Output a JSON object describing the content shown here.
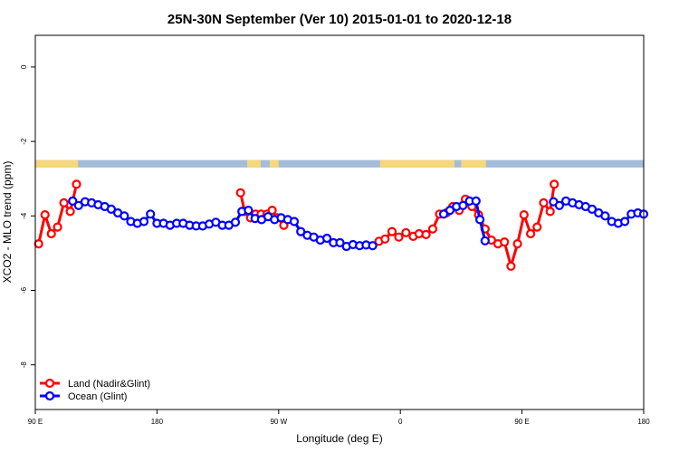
{
  "chart_data": {
    "type": "line",
    "title": "25N-30N September (Ver 10)   2015-01-01 to 2020-12-18",
    "xlabel": "Longitude (deg E)",
    "ylabel": "XCO2 - MLO trend (ppm)",
    "xlim": [
      90,
      360
    ],
    "ylim": [
      -9.2,
      0.85
    ],
    "x_ticks": [
      {
        "value": 90,
        "label": "90 E"
      },
      {
        "value": 144,
        "label": "180"
      },
      {
        "value": 198,
        "label": "90 W"
      },
      {
        "value": 252,
        "label": "0"
      },
      {
        "value": 306,
        "label": "90 E"
      },
      {
        "value": 360,
        "label": "180"
      }
    ],
    "y_ticks": [
      {
        "value": 0,
        "label": "0"
      },
      {
        "value": -2,
        "label": "-2"
      },
      {
        "value": -4,
        "label": "-4"
      },
      {
        "value": -6,
        "label": "-6"
      },
      {
        "value": -8,
        "label": "-8"
      }
    ],
    "grid": false,
    "legend": "bottom-left",
    "surface_band": {
      "y_range": [
        -2.5,
        -2.7
      ],
      "ocean_color": "#a3bcd9",
      "land_color": "#f6d77a",
      "land_segments": [
        [
          90,
          109
        ],
        [
          184,
          190
        ],
        [
          194,
          198
        ],
        [
          243,
          276
        ],
        [
          279,
          290
        ]
      ]
    },
    "series": [
      {
        "name": "Land (Nadir&Glint)",
        "color": "#ff0000",
        "segments": [
          [
            [
              91.5,
              -4.75
            ],
            [
              94.3,
              -3.97
            ],
            [
              97.1,
              -4.48
            ],
            [
              99.9,
              -4.3
            ],
            [
              102.7,
              -3.65
            ],
            [
              105.5,
              -3.88
            ],
            [
              108.3,
              -3.15
            ]
          ],
          [
            [
              181.1,
              -3.38
            ],
            [
              182.9,
              -3.88
            ],
            [
              185.5,
              -4.05
            ],
            [
              187.8,
              -3.95
            ],
            [
              190.2,
              -3.95
            ],
            [
              192.8,
              -3.95
            ],
            [
              195.1,
              -3.85
            ],
            [
              197.3,
              -4.05
            ],
            [
              200.3,
              -4.25
            ]
          ],
          [
            [
              242.5,
              -4.68
            ],
            [
              245.2,
              -4.62
            ],
            [
              248.3,
              -4.42
            ],
            [
              251.3,
              -4.57
            ],
            [
              254.5,
              -4.45
            ],
            [
              257.7,
              -4.55
            ],
            [
              260.3,
              -4.48
            ],
            [
              263.4,
              -4.5
            ],
            [
              266.4,
              -4.35
            ],
            [
              269.4,
              -3.95
            ],
            [
              272.4,
              -3.92
            ],
            [
              275.3,
              -3.75
            ],
            [
              278.1,
              -3.85
            ],
            [
              280.9,
              -3.55
            ],
            [
              283.8,
              -3.75
            ],
            [
              286.7,
              -3.97
            ],
            [
              289.6,
              -4.35
            ],
            [
              292.4,
              -4.65
            ],
            [
              295.3,
              -4.75
            ],
            [
              298.2,
              -4.7
            ],
            [
              301.1,
              -5.35
            ],
            [
              304.0,
              -4.75
            ],
            [
              306.9,
              -3.97
            ],
            [
              309.8,
              -4.48
            ],
            [
              312.7,
              -4.3
            ],
            [
              315.6,
              -3.65
            ],
            [
              318.5,
              -3.88
            ],
            [
              320.3,
              -3.15
            ]
          ]
        ]
      },
      {
        "name": "Ocean (Glint)",
        "color": "#0000ff",
        "segments": [
          [
            [
              106.6,
              -3.6
            ],
            [
              109.2,
              -3.72
            ],
            [
              112.1,
              -3.62
            ],
            [
              115.0,
              -3.65
            ],
            [
              117.9,
              -3.7
            ],
            [
              120.8,
              -3.75
            ],
            [
              123.7,
              -3.82
            ],
            [
              126.6,
              -3.92
            ],
            [
              129.5,
              -4.0
            ],
            [
              132.4,
              -4.15
            ],
            [
              135.3,
              -4.2
            ],
            [
              138.2,
              -4.15
            ],
            [
              141.1,
              -3.95
            ],
            [
              144.0,
              -4.2
            ],
            [
              146.9,
              -4.2
            ],
            [
              149.8,
              -4.25
            ],
            [
              152.7,
              -4.2
            ],
            [
              155.6,
              -4.2
            ],
            [
              158.5,
              -4.25
            ],
            [
              161.4,
              -4.27
            ],
            [
              164.3,
              -4.27
            ],
            [
              167.2,
              -4.22
            ],
            [
              170.1,
              -4.17
            ],
            [
              173.0,
              -4.25
            ],
            [
              175.9,
              -4.25
            ],
            [
              178.8,
              -4.17
            ],
            [
              181.7,
              -3.88
            ],
            [
              184.6,
              -3.85
            ],
            [
              187.5,
              -4.07
            ],
            [
              190.4,
              -4.1
            ],
            [
              193.3,
              -4.02
            ],
            [
              196.2,
              -4.1
            ],
            [
              199.1,
              -4.05
            ],
            [
              202.0,
              -4.1
            ],
            [
              204.9,
              -4.15
            ],
            [
              207.8,
              -4.42
            ],
            [
              210.7,
              -4.52
            ],
            [
              213.6,
              -4.57
            ],
            [
              216.5,
              -4.65
            ],
            [
              219.4,
              -4.6
            ],
            [
              222.3,
              -4.72
            ],
            [
              225.2,
              -4.72
            ],
            [
              228.1,
              -4.82
            ],
            [
              231.0,
              -4.77
            ],
            [
              233.9,
              -4.8
            ],
            [
              236.8,
              -4.78
            ],
            [
              239.7,
              -4.8
            ]
          ],
          [
            [
              271.2,
              -3.95
            ],
            [
              274.0,
              -3.85
            ],
            [
              276.9,
              -3.75
            ],
            [
              279.8,
              -3.72
            ],
            [
              282.7,
              -3.6
            ],
            [
              285.6,
              -3.6
            ],
            [
              287.3,
              -4.1
            ],
            [
              289.6,
              -4.67
            ]
          ],
          [
            [
              320.0,
              -3.62
            ],
            [
              322.6,
              -3.72
            ],
            [
              325.5,
              -3.6
            ],
            [
              328.4,
              -3.65
            ],
            [
              331.3,
              -3.7
            ],
            [
              334.2,
              -3.75
            ],
            [
              337.1,
              -3.82
            ],
            [
              340.0,
              -3.92
            ],
            [
              342.9,
              -4.0
            ],
            [
              345.8,
              -4.15
            ],
            [
              348.7,
              -4.2
            ],
            [
              351.6,
              -4.15
            ],
            [
              354.5,
              -3.95
            ],
            [
              357.4,
              -3.92
            ],
            [
              360.0,
              -3.95
            ]
          ]
        ]
      }
    ]
  }
}
